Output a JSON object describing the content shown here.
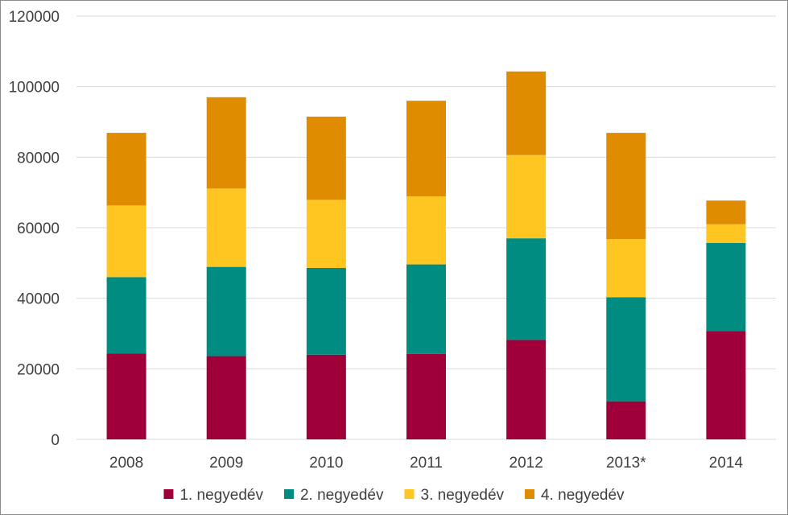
{
  "chart_data": {
    "type": "bar",
    "stacked": true,
    "title": "",
    "xlabel": "",
    "ylabel": "",
    "ylim": [
      0,
      120000
    ],
    "yticks": [
      0,
      20000,
      40000,
      60000,
      80000,
      100000,
      120000
    ],
    "grid": true,
    "legend_position": "bottom",
    "categories": [
      "2008",
      "2009",
      "2010",
      "2011",
      "2012",
      "2013*",
      "2014"
    ],
    "series": [
      {
        "name": "1. negyedév",
        "color": "#a0003a",
        "values": [
          24300,
          23600,
          24000,
          24200,
          28200,
          10800,
          30700
        ]
      },
      {
        "name": "2. negyedév",
        "color": "#008c80",
        "values": [
          21700,
          25300,
          24600,
          25400,
          28800,
          29500,
          25000
        ]
      },
      {
        "name": "3. negyedév",
        "color": "#ffc520",
        "values": [
          20300,
          22200,
          19300,
          19300,
          23600,
          16500,
          5300
        ]
      },
      {
        "name": "4. negyedév",
        "color": "#e08c00",
        "values": [
          20600,
          25900,
          23600,
          27100,
          23700,
          30100,
          6700
        ]
      }
    ]
  }
}
